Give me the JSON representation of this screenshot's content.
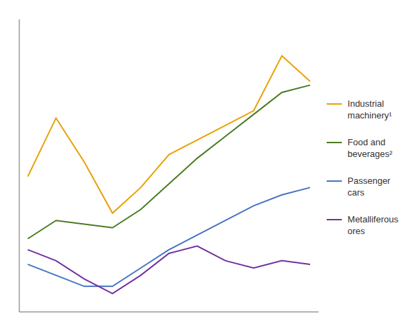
{
  "chart_data": {
    "type": "line",
    "x": [
      0,
      1,
      2,
      3,
      4,
      5,
      6,
      7,
      8,
      9,
      10
    ],
    "xlim": [
      -0.3,
      10.3
    ],
    "ylim": [
      1.5,
      9.5
    ],
    "grid": false,
    "tick_labels": false,
    "legend": "right",
    "series": [
      {
        "name": "Industrial\nmachinery¹",
        "color": "#E8A000",
        "values": [
          5.2,
          6.8,
          5.6,
          4.2,
          4.9,
          5.8,
          6.2,
          6.6,
          7.0,
          8.5,
          7.8
        ]
      },
      {
        "name": "Food and\nbeverages²",
        "color": "#4A7A20",
        "values": [
          3.5,
          4.0,
          3.9,
          3.8,
          4.3,
          5.0,
          5.7,
          6.3,
          6.9,
          7.5,
          7.7
        ]
      },
      {
        "name": "Passenger\ncars",
        "color": "#4472C4",
        "values": [
          2.8,
          2.5,
          2.2,
          2.2,
          2.7,
          3.2,
          3.6,
          4.0,
          4.4,
          4.7,
          4.9
        ]
      },
      {
        "name": "Metalliferous\nores",
        "color": "#7030A0",
        "values": [
          3.2,
          2.9,
          2.4,
          2.0,
          2.5,
          3.1,
          3.3,
          2.9,
          2.7,
          2.9,
          2.8
        ]
      }
    ]
  }
}
